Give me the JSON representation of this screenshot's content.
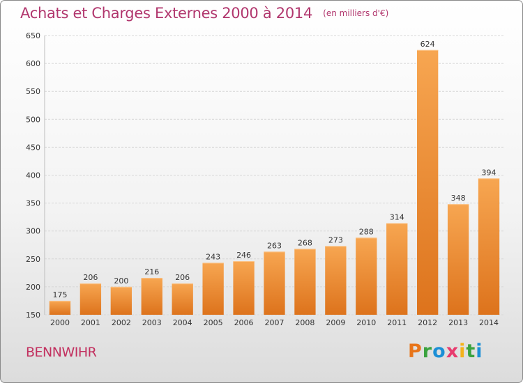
{
  "header": {
    "title": "Achats et Charges Externes 2000 à 2014",
    "subtitle": "(en milliers d'€)"
  },
  "footer": {
    "commune": "BENNWIHR",
    "brand": "Proxiti",
    "brand_colors": [
      "#e8751a",
      "#3aa23e",
      "#1b8fd6",
      "#e83b6e",
      "#f4b21b",
      "#3aa23e",
      "#1b8fd6"
    ]
  },
  "chart_data": {
    "type": "bar",
    "title": "Achats et Charges Externes 2000 à 2014",
    "subtitle": "(en milliers d'€)",
    "categories": [
      "2000",
      "2001",
      "2002",
      "2003",
      "2004",
      "2005",
      "2006",
      "2007",
      "2008",
      "2009",
      "2010",
      "2011",
      "2012",
      "2013",
      "2014"
    ],
    "values": [
      175,
      206,
      200,
      216,
      206,
      243,
      246,
      263,
      268,
      273,
      288,
      314,
      624,
      348,
      394
    ],
    "ylim": [
      150,
      650
    ],
    "yticks": [
      150,
      200,
      250,
      300,
      350,
      400,
      450,
      500,
      550,
      600,
      650
    ],
    "grid": true,
    "bar_color": "#f08a2c",
    "data_labels": true
  }
}
